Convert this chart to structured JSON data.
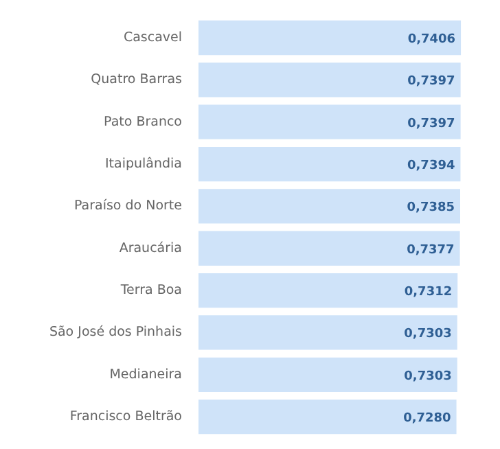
{
  "chart_data": {
    "type": "bar",
    "orientation": "horizontal",
    "categories": [
      "Cascavel",
      "Quatro Barras",
      "Pato Branco",
      "Itaipulândia",
      "Paraíso do Norte",
      "Araucária",
      "Terra Boa",
      "São José dos Pinhais",
      "Medianeira",
      "Francisco Beltrão"
    ],
    "values": [
      0.7406,
      0.7397,
      0.7397,
      0.7394,
      0.7385,
      0.7377,
      0.7312,
      0.7303,
      0.7303,
      0.728
    ],
    "value_labels": [
      "0,7406",
      "0,7397",
      "0,7397",
      "0,7394",
      "0,7385",
      "0,7377",
      "0,7312",
      "0,7303",
      "0,7303",
      "0,7280"
    ],
    "color": "#cfe3f9",
    "grid": false
  }
}
